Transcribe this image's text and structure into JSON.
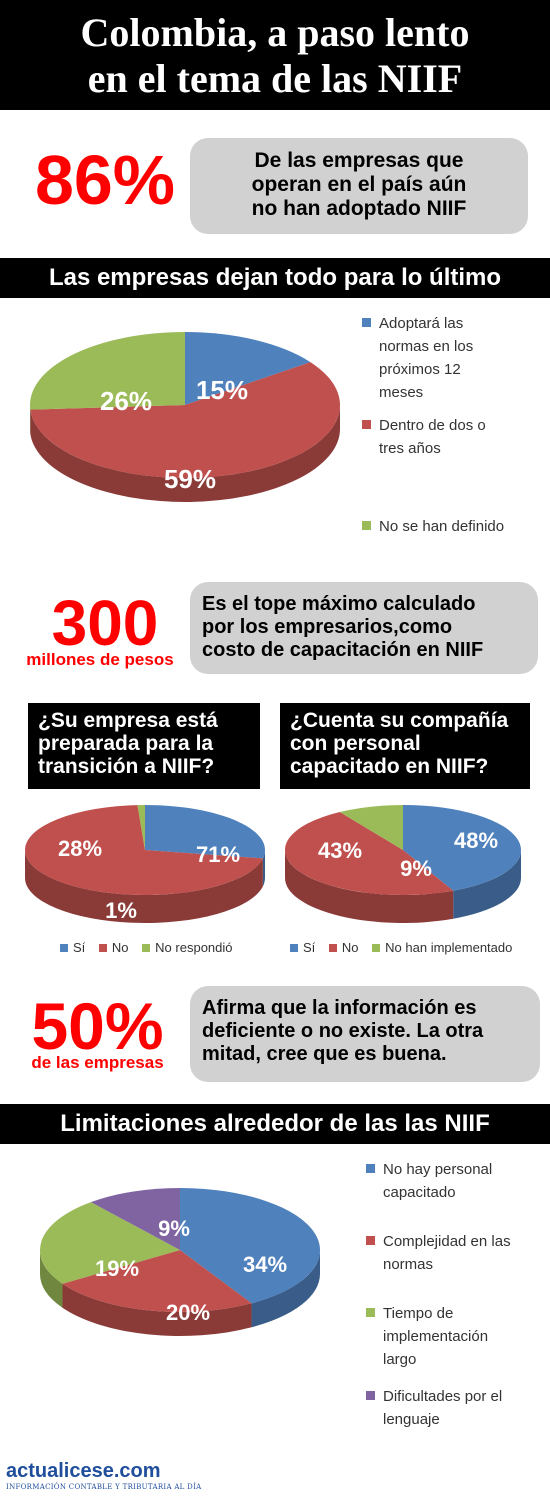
{
  "title": {
    "line1": "Colombia, a paso lento",
    "line2": "en el tema de las NIIF"
  },
  "stat1": {
    "value": "86%",
    "text": [
      "De las empresas que",
      "operan en el país aún",
      "no han adoptado NIIF"
    ]
  },
  "section1": {
    "title": "Las empresas dejan todo para lo último"
  },
  "stat2": {
    "value": "300",
    "unit": "millones de pesos",
    "text": [
      "Es el tope máximo calculado",
      "por los empresarios,como",
      "costo de capacitación en NIIF"
    ]
  },
  "question1": {
    "lines": [
      "¿Su empresa está",
      "preparada para la",
      "transición a NIIF?"
    ]
  },
  "question2": {
    "lines": [
      "¿Cuenta su compañía",
      "con personal",
      "capacitado en NIIF?"
    ]
  },
  "stat3": {
    "value": "50%",
    "unit": "de las empresas",
    "text": [
      "Afirma que la información es",
      "deficiente o no existe. La otra",
      "mitad, cree que es buena."
    ]
  },
  "section2": {
    "title": "Limitaciones alrededor de las las NIIF"
  },
  "brand": {
    "name": "actualicese.com",
    "tagline": "INFORMACIÓN CONTABLE Y TRIBUTARIA AL DÍA"
  },
  "colors": {
    "blue": "#4f81bd",
    "red": "#c0504d",
    "green": "#9bbb59",
    "purple": "#8064a2",
    "accent": "#ff0000"
  },
  "chart_data": [
    {
      "id": "adoption",
      "type": "pie",
      "categories": [
        "Adoptará las normas en los próximos 12 meses",
        "Dentro de dos o tres años",
        "No se han definido"
      ],
      "values": [
        15,
        59,
        26
      ],
      "labels": [
        "15%",
        "59%",
        "26%"
      ],
      "legend_lines": [
        [
          "Adoptará las",
          "normas en los",
          "próximos 12",
          "meses"
        ],
        [
          "Dentro de dos o",
          "tres años"
        ],
        [
          "No se han definido"
        ]
      ],
      "legend": "right"
    },
    {
      "id": "prepared",
      "type": "pie",
      "categories": [
        "Sí",
        "No",
        "No respondió"
      ],
      "values": [
        28,
        71,
        1
      ],
      "labels": [
        "28%",
        "71%",
        "1%"
      ],
      "legend": "bottom"
    },
    {
      "id": "trained",
      "type": "pie",
      "categories": [
        "Sí",
        "No",
        "No han implementado"
      ],
      "values": [
        43,
        48,
        9
      ],
      "labels": [
        "43%",
        "48%",
        "9%"
      ],
      "legend": "bottom"
    },
    {
      "id": "limitations",
      "type": "pie",
      "categories": [
        "No hay personal capacitado",
        "Complejidad en las normas",
        "Tiempo de implementación largo",
        "Dificultades por el lenguaje"
      ],
      "values": [
        34,
        20,
        19,
        9
      ],
      "labels": [
        "34%",
        "20%",
        "19%",
        "9%"
      ],
      "legend_lines": [
        [
          "No hay personal",
          "capacitado"
        ],
        [
          "Complejidad en las",
          "normas"
        ],
        [
          "Tiempo de",
          "implementación",
          "largo"
        ],
        [
          "Dificultades por el",
          "lenguaje"
        ]
      ],
      "legend": "right"
    }
  ]
}
